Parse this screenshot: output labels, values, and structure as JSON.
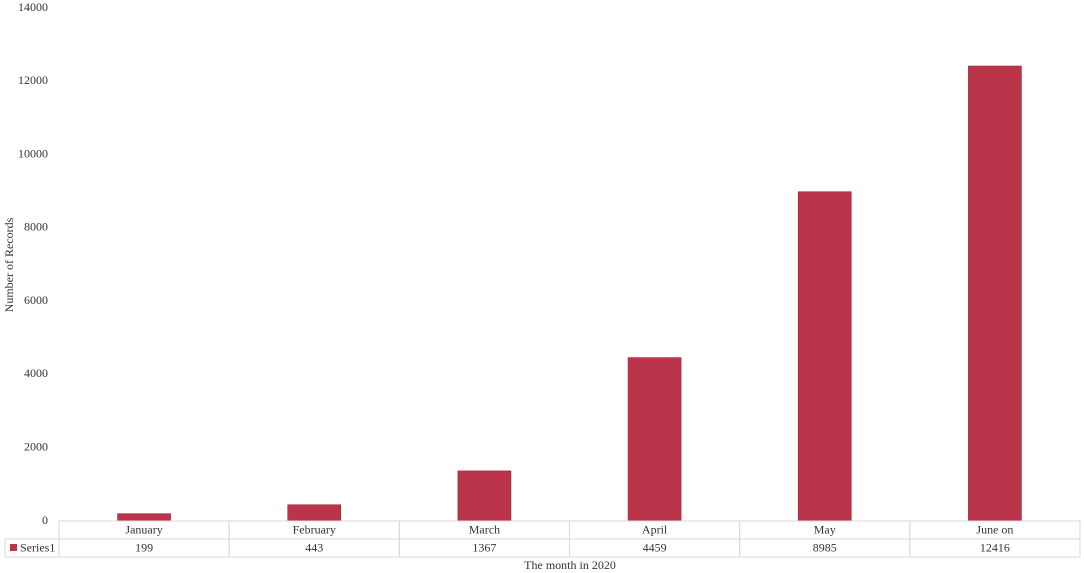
{
  "chart_data": {
    "type": "bar",
    "x_label": "The month in 2020",
    "y_label": "Number of Records",
    "categories": [
      "January",
      "February",
      "March",
      "April",
      "May",
      "June on"
    ],
    "series": [
      {
        "name": "Series1",
        "color": "#bc3449",
        "values": [
          199,
          443,
          1367,
          4459,
          8985,
          12416
        ]
      }
    ],
    "ylim": [
      0,
      14000
    ],
    "yticks": [
      0,
      2000,
      4000,
      6000,
      8000,
      10000,
      12000,
      14000
    ],
    "grid": false,
    "data_table": true
  }
}
